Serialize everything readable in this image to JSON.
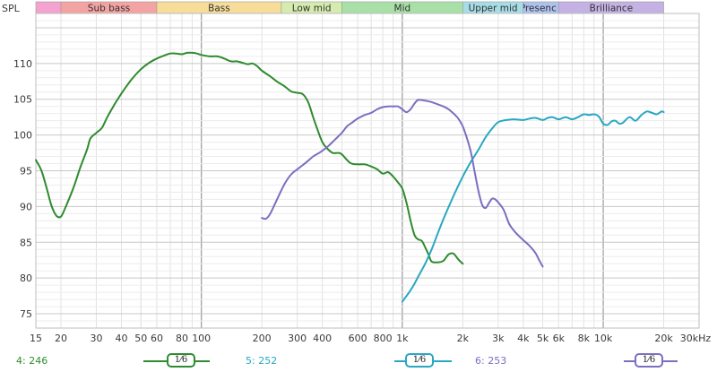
{
  "chart_data": {
    "type": "line",
    "ylabel": "SPL",
    "x_scale": "log",
    "xlim": [
      15,
      30000
    ],
    "ylim": [
      73,
      117
    ],
    "y_ticks": [
      75,
      80,
      85,
      90,
      95,
      100,
      105,
      110
    ],
    "x_ticks": [
      {
        "value": 15,
        "label": "15"
      },
      {
        "value": 20,
        "label": "20"
      },
      {
        "value": 30,
        "label": "30"
      },
      {
        "value": 40,
        "label": "40"
      },
      {
        "value": 50,
        "label": "50"
      },
      {
        "value": 60,
        "label": "60"
      },
      {
        "value": 80,
        "label": "80"
      },
      {
        "value": 100,
        "label": "100"
      },
      {
        "value": 200,
        "label": "200"
      },
      {
        "value": 300,
        "label": "300"
      },
      {
        "value": 400,
        "label": "400"
      },
      {
        "value": 600,
        "label": "600"
      },
      {
        "value": 800,
        "label": "800"
      },
      {
        "value": 1000,
        "label": "1k"
      },
      {
        "value": 2000,
        "label": "2k"
      },
      {
        "value": 3000,
        "label": "3k"
      },
      {
        "value": 4000,
        "label": "4k"
      },
      {
        "value": 5000,
        "label": "5k"
      },
      {
        "value": 6000,
        "label": "6k"
      },
      {
        "value": 8000,
        "label": "8k"
      },
      {
        "value": 10000,
        "label": "10k"
      },
      {
        "value": 20000,
        "label": "20k"
      },
      {
        "value": 30000,
        "label": "30kHz"
      }
    ],
    "bands": [
      {
        "label": "",
        "from": 15,
        "to": 20,
        "color": "#f4a3d0"
      },
      {
        "label": "Sub bass",
        "from": 20,
        "to": 60,
        "color": "#f4a3a3"
      },
      {
        "label": "Bass",
        "from": 60,
        "to": 250,
        "color": "#f7dc9a"
      },
      {
        "label": "Low mid",
        "from": 250,
        "to": 500,
        "color": "#d6ecae"
      },
      {
        "label": "Mid",
        "from": 500,
        "to": 2000,
        "color": "#a8e0a8"
      },
      {
        "label": "Upper mid",
        "from": 2000,
        "to": 4000,
        "color": "#a6dde6"
      },
      {
        "label": "Presence",
        "from": 4000,
        "to": 6000,
        "color": "#aec2ee"
      },
      {
        "label": "Brilliance",
        "from": 6000,
        "to": 20000,
        "color": "#c4b2e4"
      }
    ],
    "grid": true,
    "legend_position": "bottom",
    "series": [
      {
        "name": "4: 246",
        "color": "#2e8b2e",
        "points": [
          [
            15,
            96.5
          ],
          [
            16,
            95
          ],
          [
            17,
            92.5
          ],
          [
            18,
            90
          ],
          [
            19,
            88.7
          ],
          [
            20,
            88.6
          ],
          [
            21,
            89.8
          ],
          [
            23,
            92.5
          ],
          [
            25,
            95.5
          ],
          [
            27,
            98
          ],
          [
            28,
            99.5
          ],
          [
            30,
            100.3
          ],
          [
            32,
            101
          ],
          [
            34,
            102.5
          ],
          [
            37,
            104.3
          ],
          [
            40,
            105.8
          ],
          [
            45,
            107.8
          ],
          [
            50,
            109.2
          ],
          [
            55,
            110.1
          ],
          [
            60,
            110.7
          ],
          [
            65,
            111.1
          ],
          [
            70,
            111.4
          ],
          [
            75,
            111.4
          ],
          [
            80,
            111.3
          ],
          [
            85,
            111.5
          ],
          [
            90,
            111.5
          ],
          [
            95,
            111.4
          ],
          [
            100,
            111.2
          ],
          [
            110,
            111.0
          ],
          [
            120,
            111.0
          ],
          [
            130,
            110.7
          ],
          [
            140,
            110.3
          ],
          [
            150,
            110.3
          ],
          [
            160,
            110.1
          ],
          [
            170,
            109.9
          ],
          [
            180,
            110.0
          ],
          [
            190,
            109.6
          ],
          [
            200,
            109.0
          ],
          [
            220,
            108.2
          ],
          [
            240,
            107.4
          ],
          [
            260,
            106.8
          ],
          [
            280,
            106.1
          ],
          [
            300,
            105.9
          ],
          [
            320,
            105.7
          ],
          [
            340,
            104.6
          ],
          [
            360,
            102.5
          ],
          [
            380,
            100.6
          ],
          [
            400,
            99.0
          ],
          [
            420,
            98.2
          ],
          [
            450,
            97.5
          ],
          [
            480,
            97.5
          ],
          [
            500,
            97.3
          ],
          [
            550,
            96.1
          ],
          [
            600,
            95.9
          ],
          [
            650,
            95.9
          ],
          [
            700,
            95.6
          ],
          [
            750,
            95.2
          ],
          [
            800,
            94.6
          ],
          [
            850,
            94.8
          ],
          [
            900,
            94.2
          ],
          [
            950,
            93.4
          ],
          [
            1000,
            92.5
          ],
          [
            1050,
            90.5
          ],
          [
            1100,
            88.0
          ],
          [
            1150,
            86.0
          ],
          [
            1200,
            85.4
          ],
          [
            1250,
            85.2
          ],
          [
            1300,
            84.3
          ],
          [
            1350,
            83.3
          ],
          [
            1400,
            82.3
          ],
          [
            1500,
            82.2
          ],
          [
            1600,
            82.4
          ],
          [
            1700,
            83.3
          ],
          [
            1800,
            83.4
          ],
          [
            1900,
            82.6
          ],
          [
            2000,
            82.0
          ]
        ]
      },
      {
        "name": "5: 252",
        "color": "#28a7c2",
        "points": [
          [
            1000,
            76.7
          ],
          [
            1050,
            77.5
          ],
          [
            1100,
            78.3
          ],
          [
            1150,
            79.2
          ],
          [
            1200,
            80.2
          ],
          [
            1300,
            82.0
          ],
          [
            1400,
            84.0
          ],
          [
            1500,
            86.2
          ],
          [
            1600,
            88.2
          ],
          [
            1800,
            91.5
          ],
          [
            2000,
            94.2
          ],
          [
            2200,
            96.3
          ],
          [
            2400,
            98.0
          ],
          [
            2600,
            99.7
          ],
          [
            2800,
            100.9
          ],
          [
            3000,
            101.8
          ],
          [
            3300,
            102.1
          ],
          [
            3600,
            102.2
          ],
          [
            4000,
            102.1
          ],
          [
            4300,
            102.3
          ],
          [
            4600,
            102.4
          ],
          [
            5000,
            102.1
          ],
          [
            5300,
            102.4
          ],
          [
            5600,
            102.5
          ],
          [
            6000,
            102.2
          ],
          [
            6500,
            102.5
          ],
          [
            7000,
            102.2
          ],
          [
            7500,
            102.5
          ],
          [
            8000,
            102.9
          ],
          [
            8500,
            102.8
          ],
          [
            9000,
            102.9
          ],
          [
            9500,
            102.6
          ],
          [
            10000,
            101.6
          ],
          [
            10500,
            101.4
          ],
          [
            11000,
            101.9
          ],
          [
            11500,
            102.0
          ],
          [
            12000,
            101.6
          ],
          [
            12500,
            101.7
          ],
          [
            13500,
            102.5
          ],
          [
            14500,
            102.0
          ],
          [
            15500,
            102.8
          ],
          [
            16500,
            103.3
          ],
          [
            17500,
            103.1
          ],
          [
            18500,
            102.9
          ],
          [
            19500,
            103.3
          ],
          [
            20000,
            103.2
          ]
        ]
      },
      {
        "name": "6: 253",
        "color": "#7a6fc0",
        "points": [
          [
            200,
            88.4
          ],
          [
            210,
            88.3
          ],
          [
            220,
            89.0
          ],
          [
            240,
            91.2
          ],
          [
            260,
            93.2
          ],
          [
            280,
            94.5
          ],
          [
            300,
            95.2
          ],
          [
            320,
            95.8
          ],
          [
            340,
            96.4
          ],
          [
            360,
            97.0
          ],
          [
            380,
            97.4
          ],
          [
            400,
            97.8
          ],
          [
            430,
            98.5
          ],
          [
            460,
            99.3
          ],
          [
            500,
            100.3
          ],
          [
            530,
            101.2
          ],
          [
            560,
            101.7
          ],
          [
            600,
            102.3
          ],
          [
            650,
            102.8
          ],
          [
            700,
            103.1
          ],
          [
            750,
            103.6
          ],
          [
            800,
            103.9
          ],
          [
            850,
            104.0
          ],
          [
            900,
            104.0
          ],
          [
            950,
            104.0
          ],
          [
            1000,
            103.6
          ],
          [
            1050,
            103.2
          ],
          [
            1100,
            103.6
          ],
          [
            1150,
            104.4
          ],
          [
            1200,
            104.9
          ],
          [
            1300,
            104.8
          ],
          [
            1400,
            104.6
          ],
          [
            1500,
            104.3
          ],
          [
            1600,
            104.0
          ],
          [
            1700,
            103.6
          ],
          [
            1800,
            103.0
          ],
          [
            1900,
            102.3
          ],
          [
            2000,
            101.2
          ],
          [
            2100,
            99.5
          ],
          [
            2200,
            97.5
          ],
          [
            2300,
            94.6
          ],
          [
            2400,
            92.0
          ],
          [
            2500,
            90.2
          ],
          [
            2600,
            89.8
          ],
          [
            2700,
            90.5
          ],
          [
            2800,
            91.1
          ],
          [
            2900,
            91.0
          ],
          [
            3000,
            90.6
          ],
          [
            3200,
            89.5
          ],
          [
            3400,
            87.6
          ],
          [
            3600,
            86.6
          ],
          [
            3800,
            85.9
          ],
          [
            4000,
            85.3
          ],
          [
            4300,
            84.5
          ],
          [
            4600,
            83.5
          ],
          [
            4800,
            82.5
          ],
          [
            5000,
            81.6
          ]
        ]
      }
    ]
  },
  "legend": [
    {
      "label": "4: 246",
      "color": "#2e8b2e",
      "smoothing": "1⁄6"
    },
    {
      "label": "5: 252",
      "color": "#28a7c2",
      "smoothing": "1⁄6"
    },
    {
      "label": "6: 253",
      "color": "#7a6fc0",
      "smoothing": "1⁄6"
    }
  ]
}
